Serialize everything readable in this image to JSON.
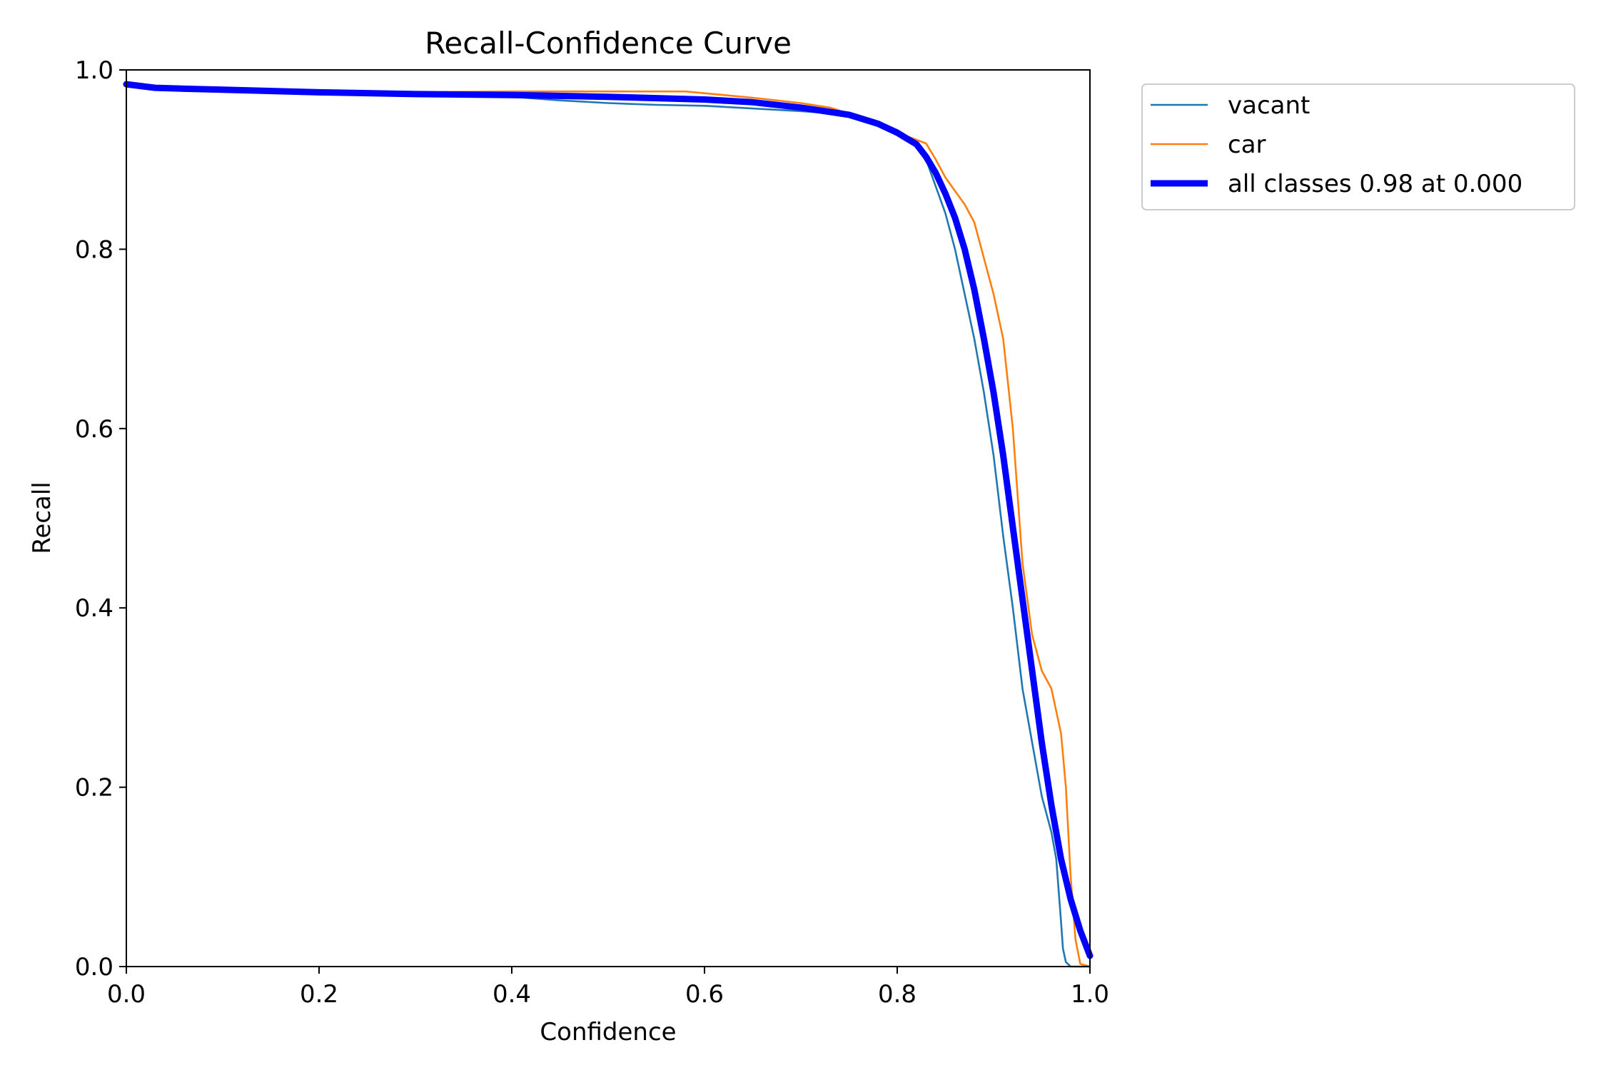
{
  "chart_data": {
    "type": "line",
    "title": "Recall-Confidence Curve",
    "xlabel": "Confidence",
    "ylabel": "Recall",
    "xlim": [
      0.0,
      1.0
    ],
    "ylim": [
      0.0,
      1.0
    ],
    "xticks": [
      "0.0",
      "0.2",
      "0.4",
      "0.6",
      "0.8",
      "1.0"
    ],
    "yticks": [
      "0.0",
      "0.2",
      "0.4",
      "0.6",
      "0.8",
      "1.0"
    ],
    "grid": false,
    "legend_placement": "outside-upper-right",
    "series": [
      {
        "name": "vacant",
        "color": "#1f77b4",
        "style": "thin",
        "x": [
          0.0,
          0.03,
          0.06,
          0.1,
          0.2,
          0.3,
          0.4,
          0.45,
          0.5,
          0.55,
          0.6,
          0.65,
          0.7,
          0.75,
          0.78,
          0.8,
          0.82,
          0.83,
          0.84,
          0.85,
          0.86,
          0.87,
          0.88,
          0.89,
          0.9,
          0.91,
          0.92,
          0.93,
          0.94,
          0.95,
          0.96,
          0.965,
          0.97,
          0.972,
          0.975,
          0.98,
          0.985,
          1.0
        ],
        "y": [
          0.984,
          0.98,
          0.978,
          0.977,
          0.975,
          0.972,
          0.97,
          0.966,
          0.963,
          0.961,
          0.96,
          0.957,
          0.954,
          0.95,
          0.94,
          0.93,
          0.915,
          0.9,
          0.87,
          0.84,
          0.8,
          0.75,
          0.7,
          0.64,
          0.57,
          0.48,
          0.4,
          0.31,
          0.25,
          0.19,
          0.15,
          0.12,
          0.05,
          0.02,
          0.005,
          0.0,
          0.0,
          0.0
        ]
      },
      {
        "name": "car",
        "color": "#ff7f0e",
        "style": "thin",
        "x": [
          0.0,
          0.03,
          0.06,
          0.1,
          0.2,
          0.3,
          0.4,
          0.5,
          0.55,
          0.58,
          0.6,
          0.62,
          0.65,
          0.7,
          0.73,
          0.76,
          0.8,
          0.82,
          0.83,
          0.84,
          0.85,
          0.86,
          0.87,
          0.88,
          0.89,
          0.9,
          0.91,
          0.92,
          0.93,
          0.94,
          0.95,
          0.96,
          0.97,
          0.975,
          0.98,
          0.985,
          0.99,
          1.0
        ],
        "y": [
          0.984,
          0.98,
          0.978,
          0.977,
          0.976,
          0.975,
          0.976,
          0.976,
          0.976,
          0.976,
          0.974,
          0.972,
          0.969,
          0.963,
          0.958,
          0.948,
          0.93,
          0.922,
          0.918,
          0.9,
          0.88,
          0.865,
          0.85,
          0.83,
          0.79,
          0.75,
          0.7,
          0.6,
          0.45,
          0.37,
          0.33,
          0.31,
          0.26,
          0.2,
          0.1,
          0.03,
          0.003,
          0.0
        ]
      },
      {
        "name": "all classes 0.98 at 0.000",
        "color": "#0000ff",
        "style": "thick",
        "x": [
          0.0,
          0.03,
          0.06,
          0.1,
          0.2,
          0.3,
          0.4,
          0.5,
          0.6,
          0.65,
          0.7,
          0.75,
          0.78,
          0.8,
          0.82,
          0.83,
          0.84,
          0.85,
          0.86,
          0.87,
          0.88,
          0.89,
          0.9,
          0.91,
          0.92,
          0.93,
          0.94,
          0.95,
          0.96,
          0.97,
          0.98,
          0.99,
          1.0
        ],
        "y": [
          0.984,
          0.98,
          0.979,
          0.978,
          0.975,
          0.973,
          0.972,
          0.97,
          0.967,
          0.964,
          0.958,
          0.95,
          0.94,
          0.93,
          0.917,
          0.903,
          0.885,
          0.862,
          0.835,
          0.8,
          0.755,
          0.7,
          0.64,
          0.57,
          0.49,
          0.41,
          0.33,
          0.25,
          0.18,
          0.12,
          0.075,
          0.04,
          0.012
        ]
      }
    ]
  }
}
